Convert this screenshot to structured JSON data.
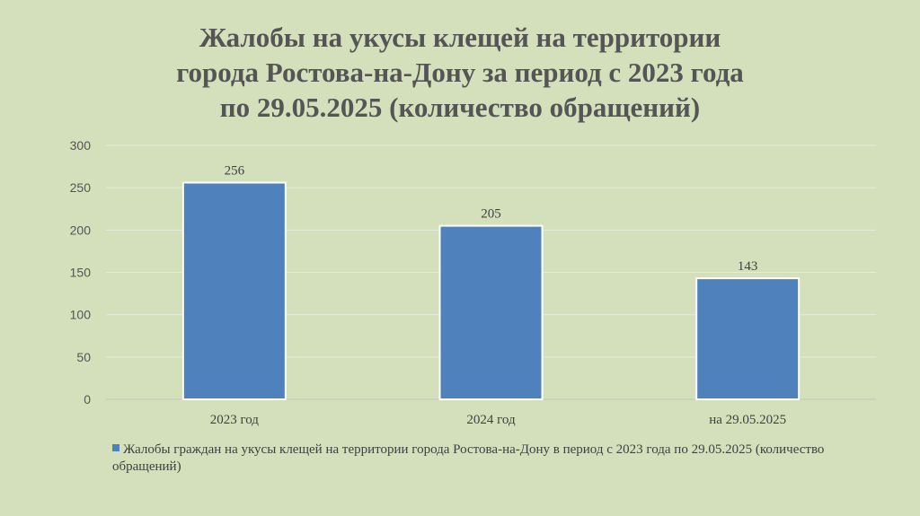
{
  "chart_data": {
    "type": "bar",
    "title": "Жалобы на укусы клещей на территории\nгорода Ростова-на-Дону за период с 2023 года\nпо 29.05.2025 (количество обращений)",
    "categories": [
      "2023 год",
      "2024 год",
      "на 29.05.2025"
    ],
    "series": [
      {
        "name": "Жалобы граждан на укусы клещей на территории города Ростова-на-Дону в период с 2023 года по 29.05.2025 (количество обращений)",
        "values": [
          256,
          205,
          143
        ],
        "color": "#4f81bd"
      }
    ],
    "ylim": [
      0,
      300
    ],
    "yticks": [
      "0",
      "50",
      "100",
      "150",
      "200",
      "250",
      "300"
    ],
    "grid": true,
    "legend": "bottom"
  }
}
